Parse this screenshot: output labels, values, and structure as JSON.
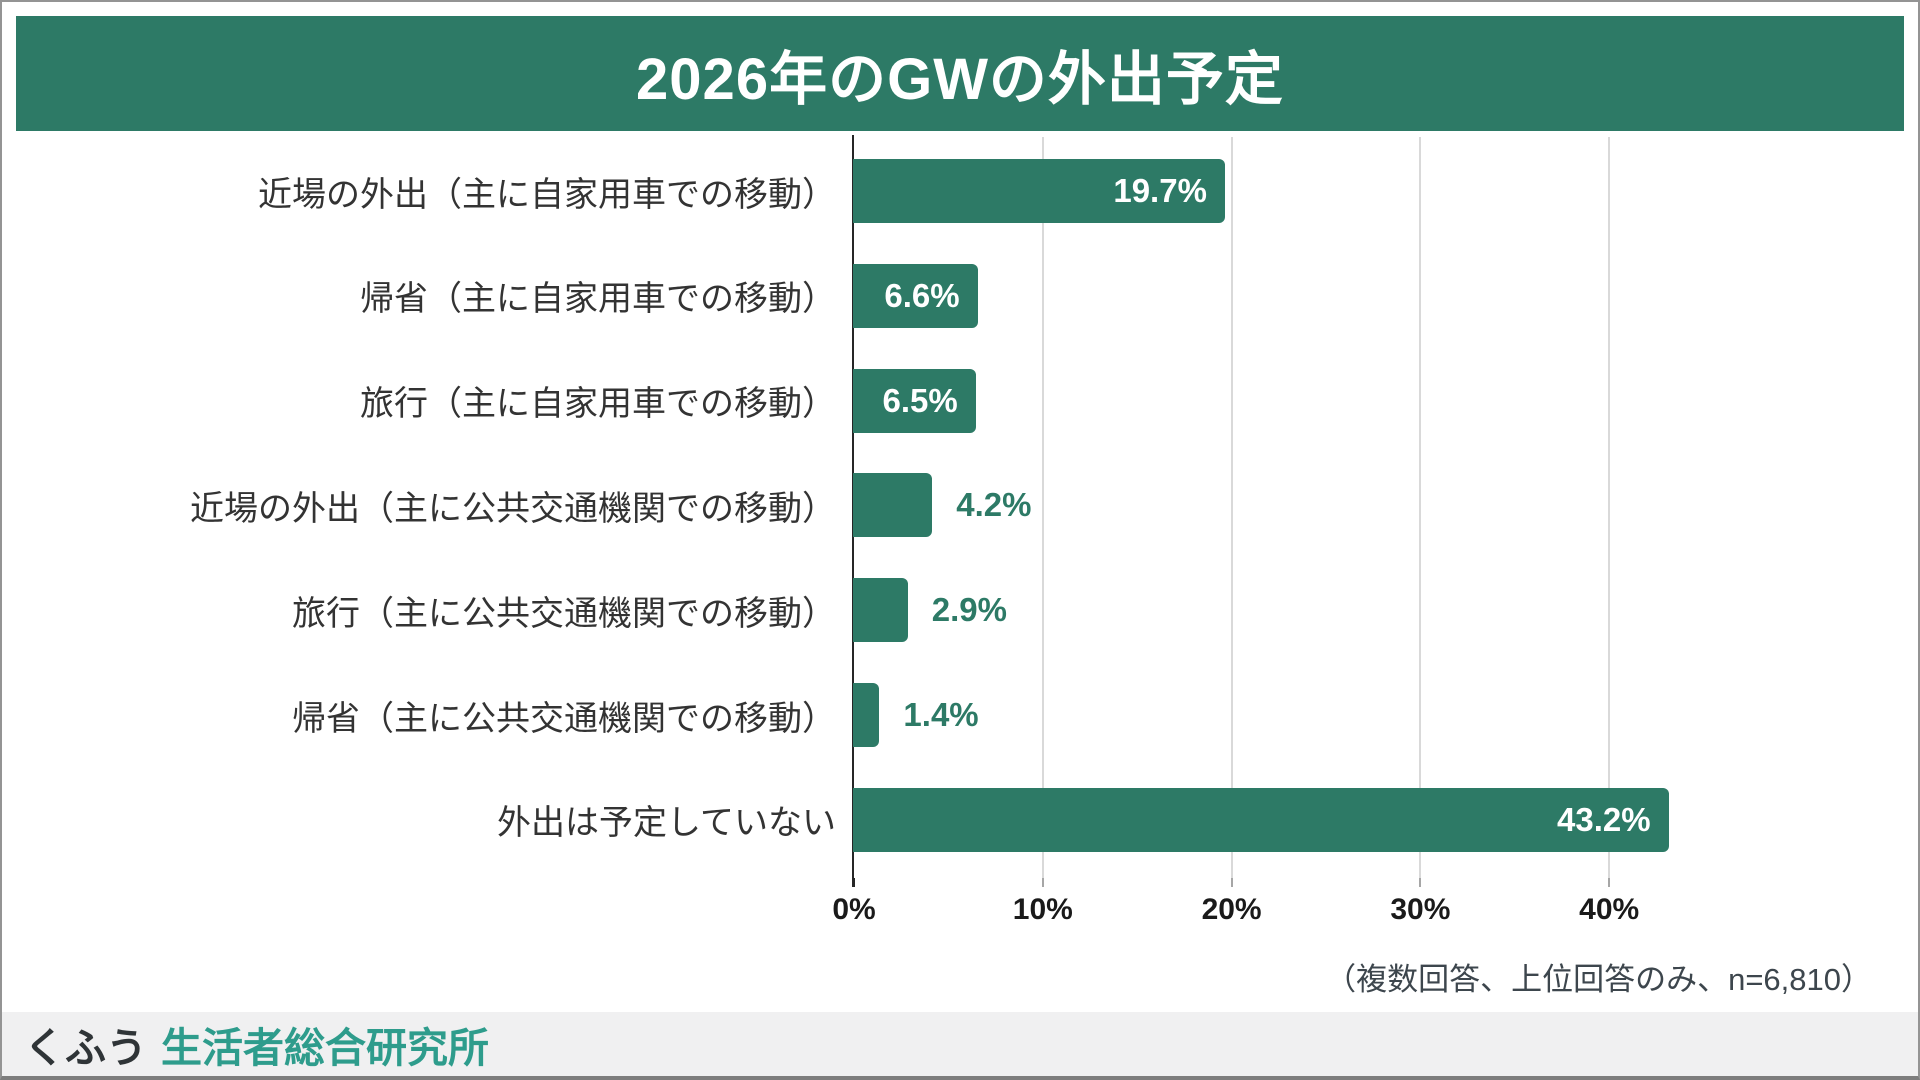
{
  "page": {
    "title": "2026年のGWの外出予定",
    "note": "（複数回答、上位回答のみ、n=6,810）",
    "footer": {
      "brand": "くふう",
      "org": "生活者総合研究所"
    },
    "colors": {
      "header_bg": "#2D7A66",
      "bar": "#2D7A66",
      "value_label_inside": "#FFFFFF",
      "value_label_outside": "#2D7A66",
      "gridline": "#D9D9D9",
      "axis_line": "#262626",
      "category_text": "#333333",
      "note_text": "#3D464D",
      "footer_bg": "#F0F0F1",
      "footer_brand_text": "#2F3437",
      "footer_org_text": "#2E9C8C"
    }
  },
  "chart_data": {
    "type": "bar",
    "orientation": "horizontal",
    "title": "2026年のGWの外出予定",
    "categories": [
      "近場の外出（主に自家用車での移動）",
      "帰省（主に自家用車での移動）",
      "旅行（主に自家用車での移動）",
      "近場の外出（主に公共交通機関での移動）",
      "旅行（主に公共交通機関での移動）",
      "帰省（主に公共交通機関での移動）",
      "外出は予定していない"
    ],
    "values": [
      19.7,
      6.6,
      6.5,
      4.2,
      2.9,
      1.4,
      43.2
    ],
    "value_labels": [
      "19.7%",
      "6.6%",
      "6.5%",
      "4.2%",
      "2.9%",
      "1.4%",
      "43.2%"
    ],
    "x_ticks": [
      "0%",
      "10%",
      "20%",
      "30%",
      "40%"
    ],
    "x_tick_values": [
      0,
      10,
      20,
      30,
      40
    ],
    "xlim": [
      0,
      55
    ],
    "grid": true,
    "legend": false,
    "value_label_inside_threshold": 6,
    "note": "（複数回答、上位回答のみ、n=6,810）",
    "sample_size": "n=6,810",
    "source": "くふう 生活者総合研究所"
  }
}
